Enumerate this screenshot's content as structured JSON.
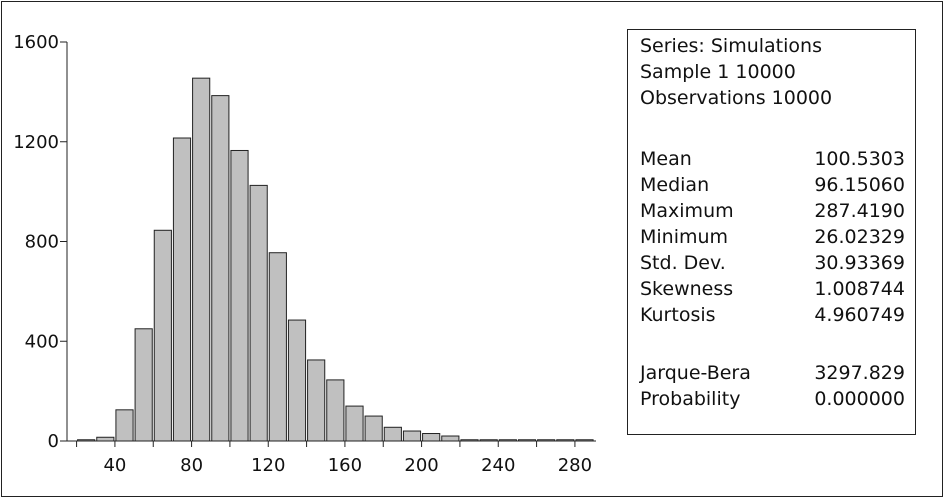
{
  "chart_data": {
    "type": "bar",
    "bin_width": 10,
    "bin_starts": [
      20,
      30,
      40,
      50,
      60,
      70,
      80,
      90,
      100,
      110,
      120,
      130,
      140,
      150,
      160,
      170,
      180,
      190,
      200,
      210,
      220,
      230,
      240,
      250,
      260,
      270,
      280
    ],
    "values": [
      5,
      15,
      125,
      450,
      845,
      1215,
      1455,
      1385,
      1165,
      1025,
      755,
      485,
      325,
      245,
      140,
      100,
      55,
      40,
      30,
      20,
      5,
      5,
      5,
      5,
      5,
      5,
      5
    ],
    "xlim": [
      15,
      291
    ],
    "ylim": [
      0,
      1600
    ],
    "x_ticks": [
      40,
      80,
      120,
      160,
      200,
      240,
      280
    ],
    "x_minor_step": 20,
    "y_ticks": [
      0,
      400,
      800,
      1200,
      1600
    ],
    "bar_color": "#c0c0c0",
    "title": "",
    "xlabel": "",
    "ylabel": ""
  },
  "stats": {
    "series_line": "Series: Simulations",
    "sample_line": "Sample 1 10000",
    "observations_line": "Observations 10000",
    "rows": [
      {
        "label": "Mean",
        "value": "100.5303"
      },
      {
        "label": "Median",
        "value": "96.15060"
      },
      {
        "label": "Maximum",
        "value": "287.4190"
      },
      {
        "label": "Minimum",
        "value": "26.02329"
      },
      {
        "label": "Std. Dev.",
        "value": "30.93369"
      },
      {
        "label": "Skewness",
        "value": "1.008744"
      },
      {
        "label": "Kurtosis",
        "value": "4.960749"
      }
    ],
    "test_rows": [
      {
        "label": "Jarque-Bera",
        "value": "3297.829"
      },
      {
        "label": "Probability",
        "value": "0.000000"
      }
    ]
  }
}
